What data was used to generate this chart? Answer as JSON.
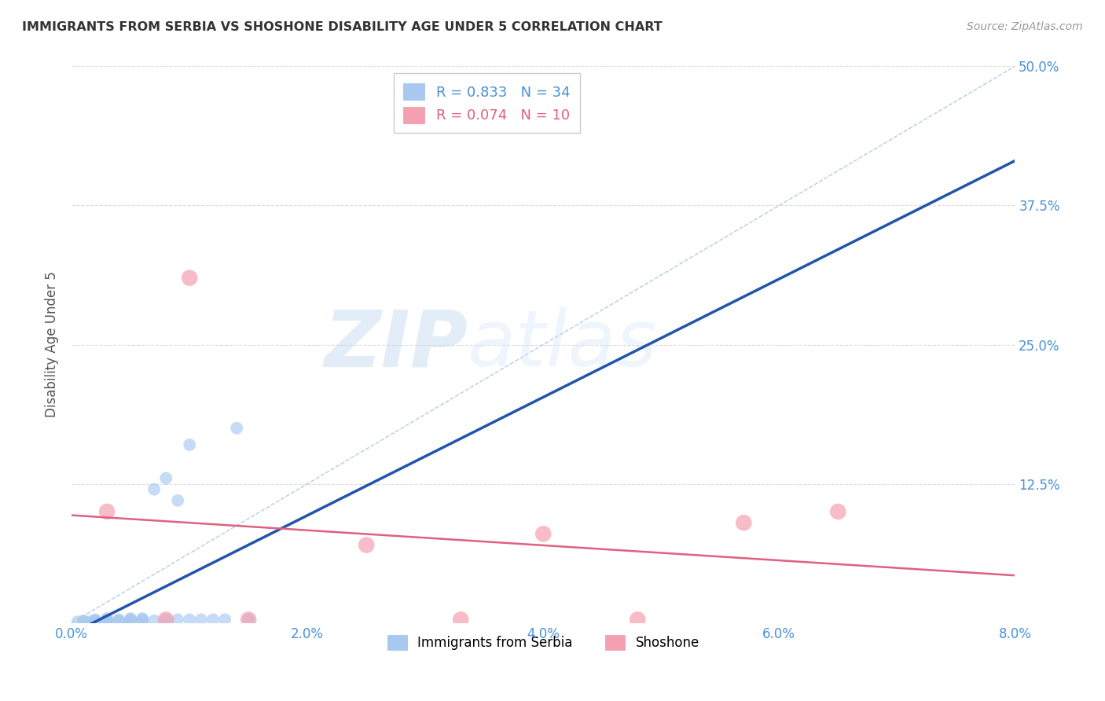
{
  "title": "IMMIGRANTS FROM SERBIA VS SHOSHONE DISABILITY AGE UNDER 5 CORRELATION CHART",
  "source": "Source: ZipAtlas.com",
  "ylabel": "Disability Age Under 5",
  "xlim": [
    0.0,
    0.08
  ],
  "ylim": [
    0.0,
    0.5
  ],
  "serbia_R": 0.833,
  "serbia_N": 34,
  "shoshone_R": 0.074,
  "shoshone_N": 10,
  "serbia_color": "#A8C8F0",
  "shoshone_color": "#F4A0B0",
  "serbia_line_color": "#2255AA",
  "shoshone_line_color": "#E06080",
  "background_color": "#FFFFFF",
  "serbia_x": [
    0.0005,
    0.001,
    0.001,
    0.0015,
    0.002,
    0.002,
    0.002,
    0.003,
    0.003,
    0.003,
    0.003,
    0.004,
    0.004,
    0.004,
    0.005,
    0.005,
    0.005,
    0.005,
    0.006,
    0.006,
    0.006,
    0.007,
    0.007,
    0.008,
    0.008,
    0.009,
    0.009,
    0.01,
    0.01,
    0.011,
    0.012,
    0.013,
    0.014,
    0.015
  ],
  "serbia_y": [
    0.001,
    0.001,
    0.002,
    0.001,
    0.001,
    0.002,
    0.003,
    0.001,
    0.002,
    0.003,
    0.004,
    0.001,
    0.002,
    0.003,
    0.001,
    0.002,
    0.003,
    0.004,
    0.002,
    0.003,
    0.004,
    0.002,
    0.12,
    0.003,
    0.13,
    0.003,
    0.11,
    0.003,
    0.16,
    0.003,
    0.003,
    0.003,
    0.175,
    0.003
  ],
  "shoshone_x": [
    0.003,
    0.008,
    0.01,
    0.015,
    0.025,
    0.033,
    0.04,
    0.048,
    0.057,
    0.065
  ],
  "shoshone_y": [
    0.1,
    0.003,
    0.31,
    0.003,
    0.07,
    0.003,
    0.08,
    0.003,
    0.09,
    0.1
  ],
  "watermark_zip": "ZIP",
  "watermark_atlas": "atlas",
  "legend_label_serbia": "Immigrants from Serbia",
  "legend_label_shoshone": "Shoshone"
}
